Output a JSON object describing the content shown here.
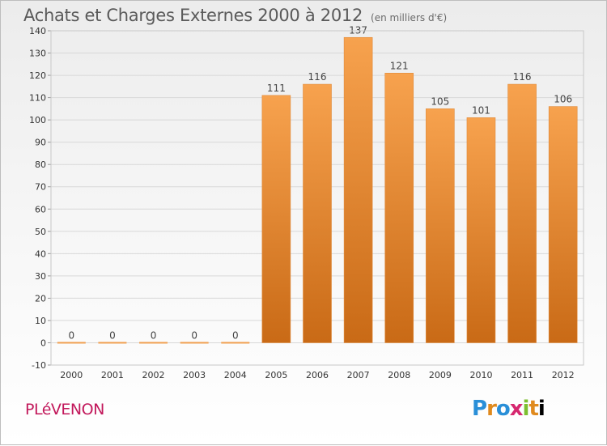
{
  "header": {
    "title": "Achats et Charges Externes 2000 à 2012",
    "subtitle": "(en milliers d'€)"
  },
  "footer": {
    "commune": "PLéVENON",
    "brand": "Proxiti"
  },
  "colors": {
    "bar_top": "#f7a24e",
    "bar_bottom": "#c96a16",
    "grid": "#d8d8d8",
    "axis_text": "#333333"
  },
  "chart_data": {
    "type": "bar",
    "title": "Achats et Charges Externes 2000 à 2012",
    "subtitle": "(en milliers d'€)",
    "categories": [
      "2000",
      "2001",
      "2002",
      "2003",
      "2004",
      "2005",
      "2006",
      "2007",
      "2008",
      "2009",
      "2010",
      "2011",
      "2012"
    ],
    "values": [
      0,
      0,
      0,
      0,
      0,
      111,
      116,
      137,
      121,
      105,
      101,
      116,
      106
    ],
    "data_labels": [
      "0",
      "0",
      "0",
      "0",
      "0",
      "111",
      "116",
      "137",
      "121",
      "105",
      "101",
      "116",
      "106"
    ],
    "ylim": [
      -10,
      140
    ],
    "yticks": [
      -10,
      0,
      10,
      20,
      30,
      40,
      50,
      60,
      70,
      80,
      90,
      100,
      110,
      120,
      130,
      140
    ],
    "grid": true,
    "legend": "none"
  }
}
